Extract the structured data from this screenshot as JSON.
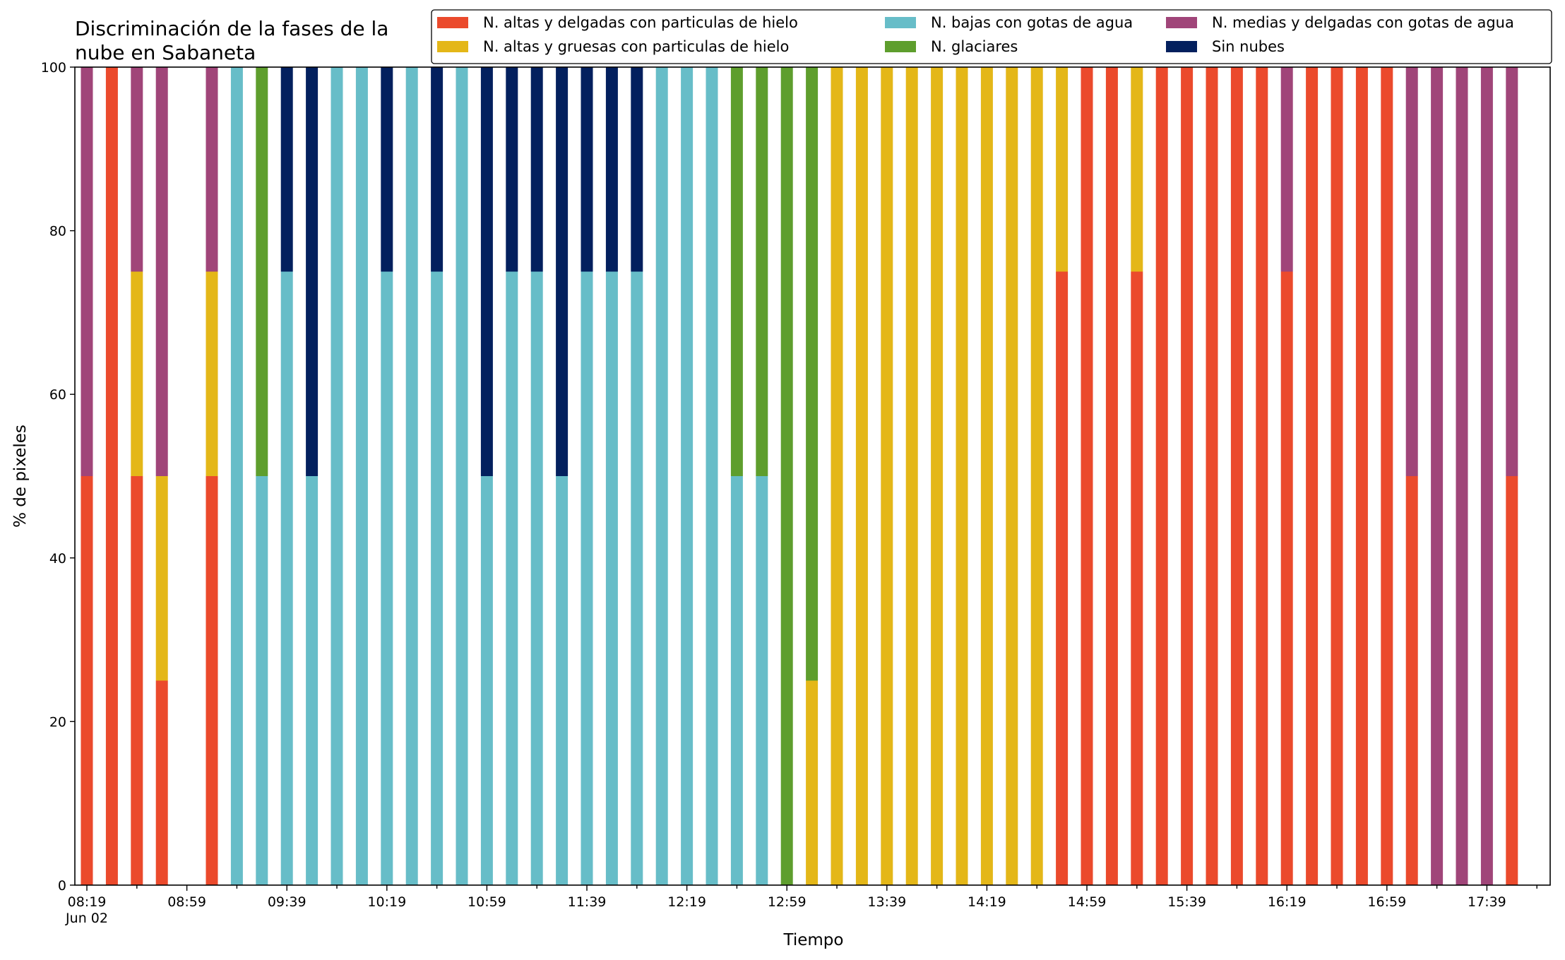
{
  "chart_data": {
    "type": "bar",
    "stacked": true,
    "title": "Discriminación de la fases de la\nnube en Sabaneta",
    "xlabel": "Tiempo",
    "ylabel": "% de pixeles",
    "ylim": [
      0,
      100
    ],
    "yticks": [
      0,
      20,
      40,
      60,
      80,
      100
    ],
    "xtick_labels": [
      "08:19\nJun 02",
      "08:59",
      "09:39",
      "10:19",
      "10:59",
      "11:39",
      "12:19",
      "12:59",
      "13:39",
      "14:19",
      "14:59",
      "15:39",
      "16:19",
      "16:59",
      "17:39"
    ],
    "legend_position": "top-right",
    "grid": false,
    "categories": [
      "08:19",
      "08:29",
      "08:39",
      "08:49",
      "08:59",
      "09:09",
      "09:19",
      "09:29",
      "09:39",
      "09:49",
      "09:59",
      "10:09",
      "10:19",
      "10:29",
      "10:39",
      "10:49",
      "10:59",
      "11:09",
      "11:19",
      "11:29",
      "11:39",
      "11:49",
      "11:59",
      "12:09",
      "12:19",
      "12:29",
      "12:39",
      "12:49",
      "12:59",
      "13:09",
      "13:19",
      "13:29",
      "13:39",
      "13:49",
      "13:59",
      "14:09",
      "14:19",
      "14:29",
      "14:39",
      "14:49",
      "14:59",
      "15:09",
      "15:19",
      "15:29",
      "15:39",
      "15:49",
      "15:59",
      "16:09",
      "16:19",
      "16:29",
      "16:39",
      "16:49",
      "16:59",
      "17:09",
      "17:19",
      "17:29",
      "17:39",
      "17:49"
    ],
    "series": [
      {
        "name": "N. altas y delgadas con particulas de hielo",
        "color": "#EB4A2C",
        "values": [
          50,
          100,
          50,
          25,
          0,
          50,
          0,
          0,
          0,
          0,
          0,
          0,
          0,
          0,
          0,
          0,
          0,
          0,
          0,
          0,
          0,
          0,
          0,
          0,
          0,
          0,
          0,
          0,
          0,
          0,
          0,
          0,
          0,
          0,
          0,
          0,
          0,
          0,
          0,
          75,
          100,
          100,
          75,
          100,
          100,
          100,
          100,
          100,
          75,
          100,
          100,
          100,
          100,
          50,
          0,
          0,
          0,
          50
        ]
      },
      {
        "name": "N. altas y gruesas con particulas de hielo",
        "color": "#E4B718",
        "values": [
          0,
          0,
          25,
          25,
          0,
          25,
          0,
          0,
          0,
          0,
          0,
          0,
          0,
          0,
          0,
          0,
          0,
          0,
          0,
          0,
          0,
          0,
          0,
          0,
          0,
          0,
          0,
          0,
          0,
          25,
          100,
          100,
          100,
          100,
          100,
          100,
          100,
          100,
          100,
          25,
          0,
          0,
          25,
          0,
          0,
          0,
          0,
          0,
          0,
          0,
          0,
          0,
          0,
          0,
          0,
          0,
          0,
          0
        ]
      },
      {
        "name": "N. bajas con gotas de agua",
        "color": "#67BDC8",
        "values": [
          0,
          0,
          0,
          0,
          0,
          0,
          100,
          50,
          75,
          50,
          100,
          100,
          75,
          100,
          75,
          100,
          50,
          75,
          75,
          50,
          75,
          75,
          75,
          100,
          100,
          100,
          50,
          50,
          0,
          0,
          0,
          0,
          0,
          0,
          0,
          0,
          0,
          0,
          0,
          0,
          0,
          0,
          0,
          0,
          0,
          0,
          0,
          0,
          0,
          0,
          0,
          0,
          0,
          0,
          0,
          0,
          0,
          0
        ]
      },
      {
        "name": "N. glaciares",
        "color": "#5E9E2D",
        "values": [
          0,
          0,
          0,
          0,
          0,
          0,
          0,
          50,
          0,
          0,
          0,
          0,
          0,
          0,
          0,
          0,
          0,
          0,
          0,
          0,
          0,
          0,
          0,
          0,
          0,
          0,
          50,
          50,
          100,
          75,
          0,
          0,
          0,
          0,
          0,
          0,
          0,
          0,
          0,
          0,
          0,
          0,
          0,
          0,
          0,
          0,
          0,
          0,
          0,
          0,
          0,
          0,
          0,
          0,
          0,
          0,
          0,
          0
        ]
      },
      {
        "name": "N. medias y delgadas con gotas de agua",
        "color": "#A04579",
        "values": [
          50,
          0,
          25,
          50,
          0,
          25,
          0,
          0,
          0,
          0,
          0,
          0,
          0,
          0,
          0,
          0,
          0,
          0,
          0,
          0,
          0,
          0,
          0,
          0,
          0,
          0,
          0,
          0,
          0,
          0,
          0,
          0,
          0,
          0,
          0,
          0,
          0,
          0,
          0,
          0,
          0,
          0,
          0,
          0,
          0,
          0,
          0,
          0,
          25,
          0,
          0,
          0,
          0,
          50,
          100,
          100,
          100,
          50
        ]
      },
      {
        "name": "Sin nubes",
        "color": "#03205E",
        "values": [
          0,
          0,
          0,
          0,
          0,
          0,
          0,
          0,
          25,
          50,
          0,
          0,
          25,
          0,
          25,
          0,
          50,
          25,
          25,
          50,
          25,
          25,
          25,
          0,
          0,
          0,
          0,
          0,
          0,
          0,
          0,
          0,
          0,
          0,
          0,
          0,
          0,
          0,
          0,
          0,
          0,
          0,
          0,
          0,
          0,
          0,
          0,
          0,
          0,
          0,
          0,
          0,
          0,
          0,
          0,
          0,
          0,
          0
        ]
      }
    ]
  }
}
